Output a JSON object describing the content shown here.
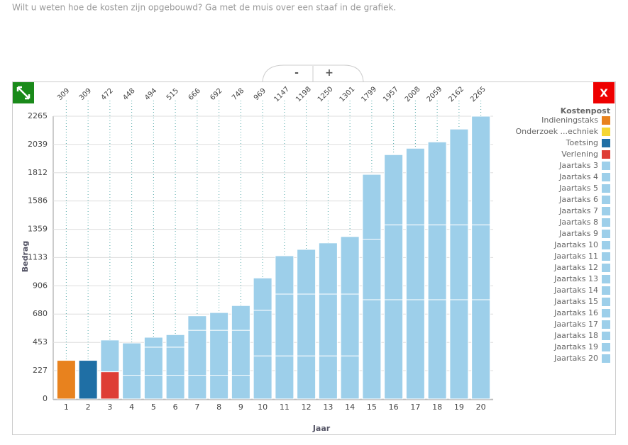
{
  "intro": "Wilt u weten hoe de kosten zijn opgebouwd? Ga met de muis over een staaf in de grafiek.",
  "controls": {
    "minus": "-",
    "plus": "+",
    "close": "X"
  },
  "chart_data": {
    "type": "stacked-bar",
    "x_label": "Jaar",
    "y_label": "Bedrag",
    "legend_title": "Kostenpost",
    "categories": [
      "1",
      "2",
      "3",
      "4",
      "5",
      "6",
      "7",
      "8",
      "9",
      "10",
      "11",
      "12",
      "13",
      "14",
      "15",
      "16",
      "17",
      "18",
      "19",
      "20"
    ],
    "totals": [
      309,
      309,
      472,
      448,
      494,
      515,
      666,
      692,
      748,
      969,
      1147,
      1198,
      1250,
      1301,
      1799,
      1957,
      2008,
      2059,
      2162,
      2265
    ],
    "series": [
      {
        "name": "Indieningstaks",
        "color": "#e8821e"
      },
      {
        "name": "Onderzoek ...echniek",
        "color": "#f5d633"
      },
      {
        "name": "Toetsing",
        "color": "#1f6fa5"
      },
      {
        "name": "Verlening",
        "color": "#de3d35"
      },
      {
        "name": "Jaartaks 3",
        "color": "#9dcfea"
      },
      {
        "name": "Jaartaks 4",
        "color": "#9dcfea"
      },
      {
        "name": "Jaartaks 5",
        "color": "#9dcfea"
      },
      {
        "name": "Jaartaks 6",
        "color": "#9dcfea"
      },
      {
        "name": "Jaartaks 7",
        "color": "#9dcfea"
      },
      {
        "name": "Jaartaks 8",
        "color": "#9dcfea"
      },
      {
        "name": "Jaartaks 9",
        "color": "#9dcfea"
      },
      {
        "name": "Jaartaks 10",
        "color": "#9dcfea"
      },
      {
        "name": "Jaartaks 11",
        "color": "#9dcfea"
      },
      {
        "name": "Jaartaks 12",
        "color": "#9dcfea"
      },
      {
        "name": "Jaartaks 13",
        "color": "#9dcfea"
      },
      {
        "name": "Jaartaks 14",
        "color": "#9dcfea"
      },
      {
        "name": "Jaartaks 15",
        "color": "#9dcfea"
      },
      {
        "name": "Jaartaks 16",
        "color": "#9dcfea"
      },
      {
        "name": "Jaartaks 17",
        "color": "#9dcfea"
      },
      {
        "name": "Jaartaks 18",
        "color": "#9dcfea"
      },
      {
        "name": "Jaartaks 19",
        "color": "#9dcfea"
      },
      {
        "name": "Jaartaks 20",
        "color": "#9dcfea"
      }
    ],
    "stacks": [
      [
        {
          "s": 0,
          "v": 309
        }
      ],
      [
        {
          "s": 2,
          "v": 309
        }
      ],
      [
        {
          "s": 3,
          "v": 218
        },
        {
          "s": 4,
          "v": 254
        }
      ],
      [
        {
          "s": 4,
          "v": 190
        },
        {
          "s": 5,
          "v": 258
        }
      ],
      [
        {
          "s": 4,
          "v": 190
        },
        {
          "s": 5,
          "v": 225
        },
        {
          "s": 6,
          "v": 79
        }
      ],
      [
        {
          "s": 4,
          "v": 190
        },
        {
          "s": 5,
          "v": 225
        },
        {
          "s": 7,
          "v": 100
        }
      ],
      [
        {
          "s": 4,
          "v": 190
        },
        {
          "s": 5,
          "v": 360
        },
        {
          "s": 8,
          "v": 116
        }
      ],
      [
        {
          "s": 4,
          "v": 190
        },
        {
          "s": 5,
          "v": 360
        },
        {
          "s": 9,
          "v": 142
        }
      ],
      [
        {
          "s": 4,
          "v": 190
        },
        {
          "s": 5,
          "v": 360
        },
        {
          "s": 10,
          "v": 198
        }
      ],
      [
        {
          "s": 4,
          "v": 345
        },
        {
          "s": 5,
          "v": 365
        },
        {
          "s": 11,
          "v": 259
        }
      ],
      [
        {
          "s": 4,
          "v": 345
        },
        {
          "s": 5,
          "v": 495
        },
        {
          "s": 12,
          "v": 307
        }
      ],
      [
        {
          "s": 4,
          "v": 345
        },
        {
          "s": 5,
          "v": 495
        },
        {
          "s": 13,
          "v": 358
        }
      ],
      [
        {
          "s": 4,
          "v": 345
        },
        {
          "s": 5,
          "v": 495
        },
        {
          "s": 14,
          "v": 410
        }
      ],
      [
        {
          "s": 4,
          "v": 345
        },
        {
          "s": 5,
          "v": 495
        },
        {
          "s": 15,
          "v": 461
        }
      ],
      [
        {
          "s": 4,
          "v": 795
        },
        {
          "s": 5,
          "v": 485
        },
        {
          "s": 16,
          "v": 519
        }
      ],
      [
        {
          "s": 4,
          "v": 795
        },
        {
          "s": 5,
          "v": 600
        },
        {
          "s": 17,
          "v": 562
        }
      ],
      [
        {
          "s": 4,
          "v": 795
        },
        {
          "s": 5,
          "v": 600
        },
        {
          "s": 18,
          "v": 613
        }
      ],
      [
        {
          "s": 4,
          "v": 795
        },
        {
          "s": 5,
          "v": 600
        },
        {
          "s": 19,
          "v": 664
        }
      ],
      [
        {
          "s": 4,
          "v": 795
        },
        {
          "s": 5,
          "v": 600
        },
        {
          "s": 20,
          "v": 767
        }
      ],
      [
        {
          "s": 4,
          "v": 795
        },
        {
          "s": 5,
          "v": 600
        },
        {
          "s": 21,
          "v": 870
        }
      ]
    ],
    "ylim": [
      0,
      2265
    ],
    "yticks": [
      0,
      227,
      453,
      680,
      906,
      1133,
      1359,
      1586,
      1812,
      2039,
      2265
    ],
    "grid": true
  }
}
